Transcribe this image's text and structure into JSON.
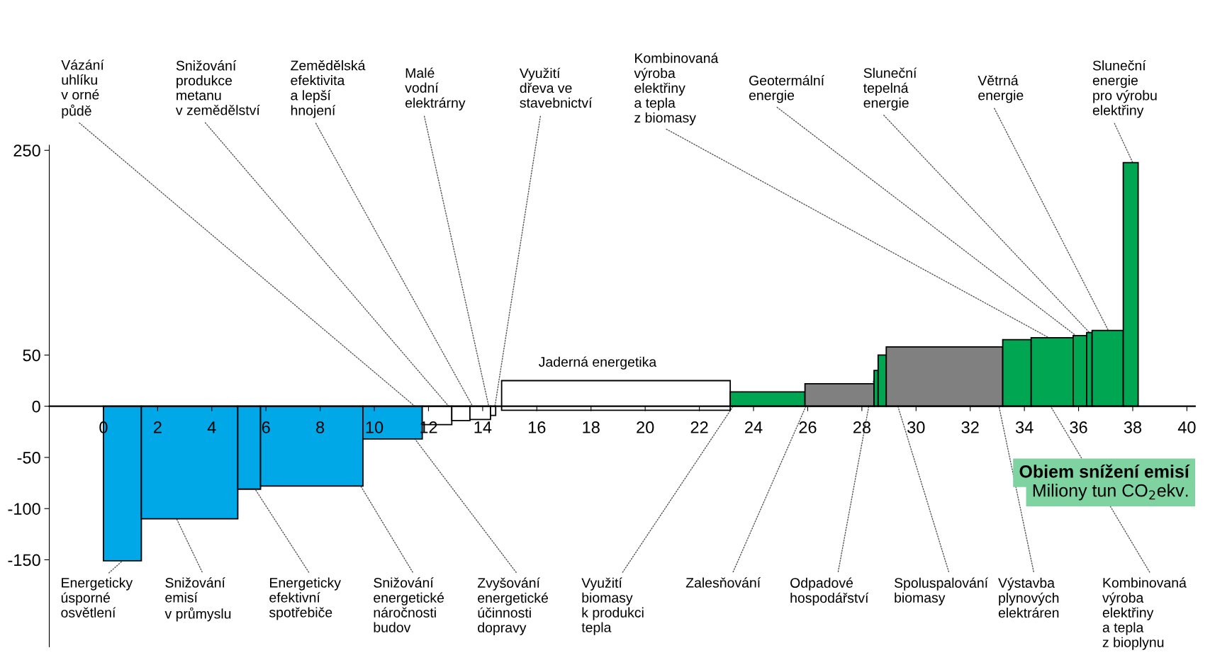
{
  "chart_data": {
    "type": "histogram",
    "xlabel": "Objem snížení emisí\nMiliony tun CO$_{2}$ekv.",
    "bins": [
      0,
      1.4,
      4.96,
      5.8,
      9.58,
      11.77,
      12.86,
      13.53,
      14.29,
      14.48,
      14.7,
      23.14,
      25.9,
      28.45,
      28.6,
      28.9,
      33.2,
      34.25,
      35.8,
      36.3,
      36.5,
      37.65,
      38.2
    ],
    "series": [
      {
        "colors": [
          "#00a8e8",
          "#00a8e8",
          "#00a8e8",
          "#00a8e8",
          "#00a8e8",
          "#ffffff",
          "#ffffff",
          "#ffffff",
          "#ffffff",
          "#ffffff",
          "#ffffff",
          "#00a651",
          "#808080",
          "#00a651",
          "#00a651",
          "#808080",
          "#00a651",
          "#00a651",
          "#00a651",
          "#00a651",
          "#00a651",
          "#00a651"
        ],
        "base": [
          null,
          null,
          null,
          null,
          null,
          null,
          null,
          null,
          null,
          null,
          -4,
          null,
          null,
          null,
          null,
          null,
          null,
          null,
          null,
          null,
          null,
          null
        ],
        "values": [
          -151,
          -110,
          -81,
          -78,
          -32,
          -18,
          -14,
          -13,
          -9,
          null,
          29,
          14,
          22,
          35,
          50,
          58,
          65,
          67,
          69,
          72,
          74,
          238
        ]
      }
    ],
    "xlim": [
      -2,
      40.3
    ],
    "ylim": [
      -235,
      255
    ],
    "xticks": [
      0,
      2,
      4,
      6,
      8,
      10,
      12,
      14,
      16,
      18,
      20,
      22,
      24,
      26,
      28,
      30,
      32,
      34,
      36,
      38,
      40
    ],
    "yticks": [
      -150,
      -100,
      -50,
      0,
      50,
      250
    ],
    "grid": false,
    "annotations": [
      {
        "text": "Vázání\nuhlíku\nv orné\npůdě",
        "x": 12.3,
        "y": -18
      },
      {
        "text": "Snižování\nprodukce\nmetanu\nv zemědělství",
        "x": 13.2,
        "y": -14
      },
      {
        "text": "Zemědělská\nefektivita\na lepší\nhnojení",
        "x": 13.9,
        "y": -13
      },
      {
        "text": "Malé\nvodní\nelektrárny",
        "x": 14.3,
        "y": -9
      },
      {
        "text": "Využití\ndřeva ve\nstavebnictví",
        "x": 14.4,
        "y": -9
      },
      {
        "text": "Kombinovaná\nvýroba\nelektřiny\na tepla\nz biomasy",
        "x": 34.9,
        "y": 67
      },
      {
        "text": "Geotermální\nenergie",
        "x": 35.9,
        "y": 69
      },
      {
        "text": "Sluneční\ntepelná\nenergie",
        "x": 36.4,
        "y": 72
      },
      {
        "text": "Větrná\nenergie",
        "x": 37.1,
        "y": 74
      },
      {
        "text": "Sluneční\nenergie\npro výrobu\nelektřiny",
        "x": 38.0,
        "y": 238
      },
      {
        "text": "Energeticky\núsporné\nosvětlení",
        "x": 0.7,
        "y": -151
      },
      {
        "text": "Snižování\nemisí\nv průmyslu",
        "x": 2.7,
        "y": -110
      },
      {
        "text": "Energeticky\nefektivní\nspotřebiče",
        "x": 5.6,
        "y": -81
      },
      {
        "text": "Snižování\nenergetické\nnáročnosti\nbudov",
        "x": 9.5,
        "y": -78
      },
      {
        "text": "Zvyšování\nenergetické\núčinnosti\ndopravy",
        "x": 11.5,
        "y": -32
      },
      {
        "text": "Využití\nbiomasy\nk produkci\ntepla",
        "x": 23.6,
        "y": 14
      },
      {
        "text": "Zalesňování",
        "x": 26.3,
        "y": 22
      },
      {
        "text": "Odpadové\nhospodářství",
        "x": 28.5,
        "y": 35
      },
      {
        "text": "Spoluspalování\nbiomasy",
        "x": 28.75,
        "y": 50
      },
      {
        "text": "Výstavba\nplynových\nelektráren",
        "x": 32.6,
        "y": 58
      },
      {
        "text": "Kombinovaná\nvýroba\nelektřiny\na tepla\nz bioplynu",
        "x": 33.5,
        "y": 65
      },
      "Jaderná energetika"
    ]
  }
}
